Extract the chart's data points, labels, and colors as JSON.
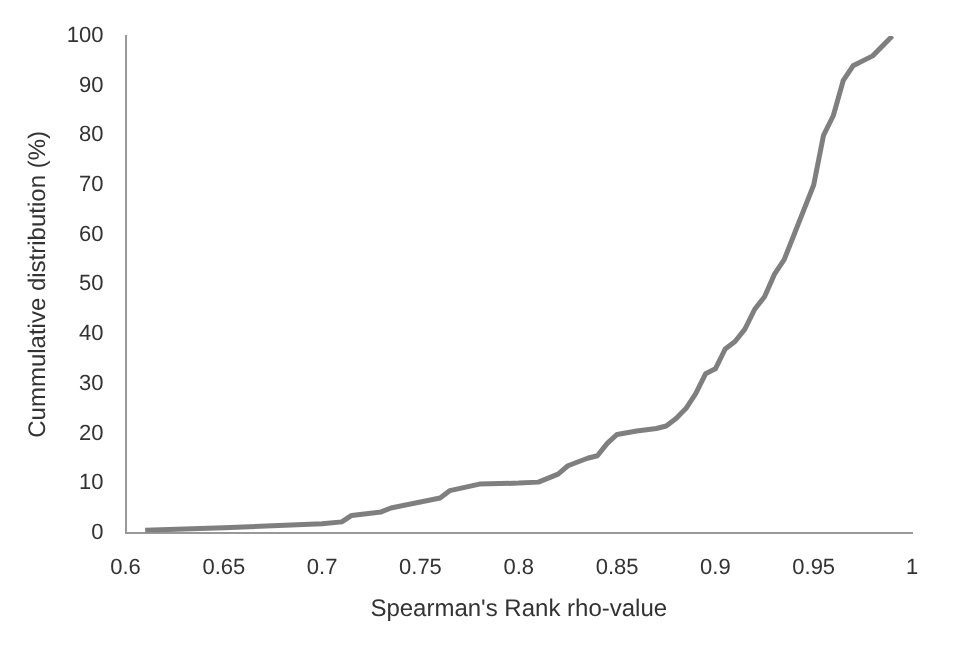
{
  "chart_data": {
    "type": "line",
    "xlabel": "Spearman's Rank rho-value",
    "ylabel": "Cummulative distribution (%)",
    "series": [
      {
        "color": "#7f7f7f",
        "x": [
          0.61,
          0.65,
          0.7,
          0.71,
          0.715,
          0.73,
          0.735,
          0.76,
          0.765,
          0.78,
          0.8,
          0.81,
          0.815,
          0.82,
          0.825,
          0.835,
          0.84,
          0.845,
          0.85,
          0.86,
          0.87,
          0.875,
          0.88,
          0.885,
          0.89,
          0.895,
          0.9,
          0.905,
          0.91,
          0.915,
          0.92,
          0.925,
          0.93,
          0.935,
          0.94,
          0.945,
          0.95,
          0.955,
          0.96,
          0.965,
          0.97,
          0.98,
          0.99
        ],
        "values": [
          0.5,
          1,
          1.8,
          2.2,
          3.5,
          4.2,
          5,
          7,
          8.5,
          9.8,
          10,
          10.2,
          11,
          11.8,
          13.5,
          15,
          15.5,
          18,
          19.8,
          20.5,
          21,
          21.5,
          23,
          25,
          28,
          32,
          33,
          37,
          38.5,
          41,
          45,
          47.5,
          52,
          55,
          60,
          65,
          70,
          80,
          84,
          91,
          94,
          96,
          100
        ]
      }
    ],
    "xlim": [
      0.6,
      1
    ],
    "xticks": [
      0.6,
      0.65,
      0.7,
      0.75,
      0.8,
      0.85,
      0.9,
      0.95,
      1
    ],
    "ylim": [
      0,
      100
    ],
    "yticks": [
      0,
      10,
      20,
      30,
      40,
      50,
      60,
      70,
      80,
      90,
      100
    ],
    "grid": false,
    "legend": false,
    "marker": "none",
    "line_style": "solid"
  }
}
